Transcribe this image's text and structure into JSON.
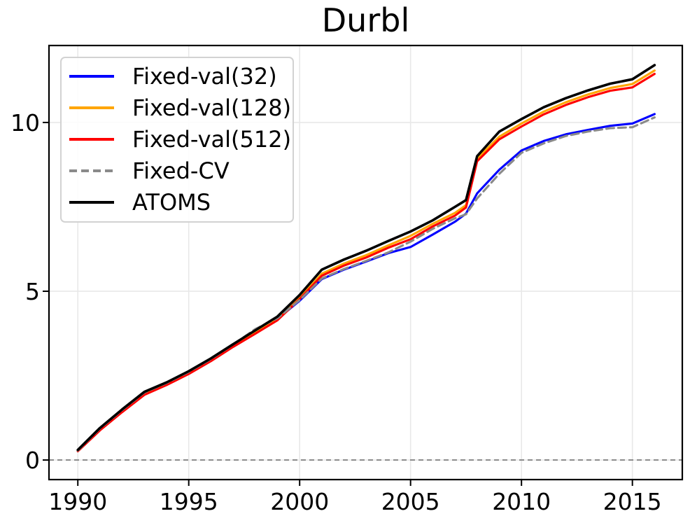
{
  "chart_data": {
    "type": "line",
    "title": "Durbl",
    "xlabel": "",
    "ylabel": "",
    "x": [
      1990,
      1991,
      1992,
      1993,
      1994,
      1995,
      1996,
      1997,
      1998,
      1999,
      2000,
      2001,
      2002,
      2003,
      2004,
      2005,
      2006,
      2007,
      2007.5,
      2008,
      2009,
      2010,
      2011,
      2012,
      2013,
      2014,
      2015,
      2016
    ],
    "series": [
      {
        "name": "Fixed-val(32)",
        "color": "#0000ff",
        "style": "solid",
        "values": [
          0.28,
          0.92,
          1.47,
          1.98,
          2.26,
          2.59,
          2.97,
          3.39,
          3.79,
          4.18,
          4.72,
          5.36,
          5.64,
          5.88,
          6.13,
          6.31,
          6.68,
          7.06,
          7.3,
          7.9,
          8.6,
          9.17,
          9.45,
          9.65,
          9.78,
          9.9,
          9.97,
          10.25
        ]
      },
      {
        "name": "Fixed-val(128)",
        "color": "#ffa500",
        "style": "solid",
        "values": [
          0.27,
          0.9,
          1.44,
          1.95,
          2.24,
          2.57,
          2.95,
          3.37,
          3.77,
          4.17,
          4.8,
          5.52,
          5.82,
          6.07,
          6.36,
          6.64,
          7.0,
          7.32,
          7.55,
          8.93,
          9.58,
          9.97,
          10.32,
          10.6,
          10.83,
          11.02,
          11.14,
          11.54
        ]
      },
      {
        "name": "Fixed-val(512)",
        "color": "#ff0000",
        "style": "solid",
        "values": [
          0.26,
          0.88,
          1.42,
          1.93,
          2.22,
          2.55,
          2.93,
          3.35,
          3.74,
          4.14,
          4.77,
          5.46,
          5.76,
          6.0,
          6.29,
          6.54,
          6.92,
          7.24,
          7.48,
          8.85,
          9.5,
          9.88,
          10.24,
          10.52,
          10.75,
          10.94,
          11.04,
          11.44
        ]
      },
      {
        "name": "Fixed-CV",
        "color": "#8a8a8a",
        "style": "dashed",
        "values": [
          0.28,
          0.93,
          1.48,
          2.0,
          2.28,
          2.61,
          2.99,
          3.42,
          3.88,
          4.2,
          4.74,
          5.38,
          5.66,
          5.9,
          6.15,
          6.47,
          6.85,
          7.16,
          7.28,
          7.75,
          8.48,
          9.1,
          9.38,
          9.6,
          9.73,
          9.83,
          9.86,
          10.15
        ]
      },
      {
        "name": "ATOMS",
        "color": "#000000",
        "style": "solid",
        "values": [
          0.3,
          0.95,
          1.5,
          2.02,
          2.3,
          2.63,
          3.01,
          3.43,
          3.84,
          4.25,
          4.89,
          5.64,
          5.94,
          6.2,
          6.49,
          6.77,
          7.1,
          7.5,
          7.7,
          9.0,
          9.73,
          10.1,
          10.45,
          10.72,
          10.95,
          11.15,
          11.28,
          11.7
        ]
      }
    ],
    "axes": {
      "xlim": [
        1988.7,
        2017.25
      ],
      "ylim": [
        -0.58,
        12.28
      ],
      "x_ticks": [
        1990,
        1995,
        2000,
        2005,
        2010,
        2015
      ],
      "y_ticks": [
        0,
        5,
        10
      ],
      "grid": true,
      "grid_color": "#e8e8e8",
      "tick_label_color": "#000000"
    },
    "reference_lines": [
      {
        "y": 0,
        "color": "#8c8c8c",
        "style": "dashed"
      }
    ],
    "legend": {
      "position": "upper-left",
      "entries": [
        "Fixed-val(32)",
        "Fixed-val(128)",
        "Fixed-val(512)",
        "Fixed-CV",
        "ATOMS"
      ]
    }
  }
}
